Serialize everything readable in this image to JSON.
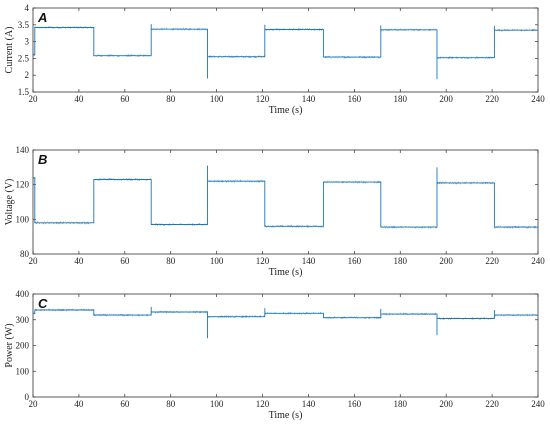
{
  "chart_data": [
    {
      "type": "line",
      "panel_label": "A",
      "xlabel": "Time (s)",
      "ylabel": "Current (A)",
      "xlim": [
        20,
        240
      ],
      "ylim": [
        1.5,
        4
      ],
      "xticks": [
        20,
        40,
        60,
        80,
        100,
        120,
        140,
        160,
        180,
        200,
        220,
        240
      ],
      "yticks": [
        1.5,
        2,
        2.5,
        3,
        3.5,
        4
      ],
      "grid": false,
      "color": "#1f77b4",
      "noise": 0.04,
      "series": [
        {
          "x": [
            20,
            20.8,
            20.8,
            46.5,
            46.5,
            71.5,
            71.5,
            96,
            96,
            121,
            121,
            146.5,
            146.5,
            171.5,
            171.5,
            196,
            196,
            221,
            221,
            240
          ],
          "y": [
            2.6,
            2.6,
            3.42,
            3.42,
            2.58,
            2.58,
            3.37,
            3.37,
            2.55,
            2.55,
            3.36,
            3.36,
            2.54,
            2.54,
            3.35,
            3.35,
            2.52,
            2.52,
            3.34,
            3.34
          ]
        }
      ],
      "spikes": [
        {
          "x": 71.5,
          "y": 3.52
        },
        {
          "x": 96,
          "y": 1.9
        },
        {
          "x": 121,
          "y": 3.5
        },
        {
          "x": 171.5,
          "y": 3.48
        },
        {
          "x": 196,
          "y": 1.88
        },
        {
          "x": 221,
          "y": 3.47
        }
      ]
    },
    {
      "type": "line",
      "panel_label": "B",
      "xlabel": "Time (s)",
      "ylabel": "Voltage (V)",
      "xlim": [
        20,
        240
      ],
      "ylim": [
        80,
        140
      ],
      "xticks": [
        20,
        40,
        60,
        80,
        100,
        120,
        140,
        160,
        180,
        200,
        220,
        240
      ],
      "yticks": [
        80,
        100,
        120,
        140
      ],
      "grid": false,
      "color": "#1f77b4",
      "noise": 0.8,
      "series": [
        {
          "x": [
            20,
            20.8,
            20.8,
            46.5,
            46.5,
            71.5,
            71.5,
            96,
            96,
            121,
            121,
            146.5,
            146.5,
            171.5,
            171.5,
            196,
            196,
            221,
            221,
            240
          ],
          "y": [
            124,
            124,
            98,
            98,
            123,
            123,
            97,
            97,
            122,
            122,
            96,
            96,
            121.5,
            121.5,
            95.5,
            95.5,
            121,
            121,
            95.5,
            95.5
          ]
        }
      ],
      "spikes": [
        {
          "x": 96,
          "y": 131
        },
        {
          "x": 196,
          "y": 130
        }
      ]
    },
    {
      "type": "line",
      "panel_label": "C",
      "xlabel": "Time (s)",
      "ylabel": "Power (W)",
      "xlim": [
        20,
        240
      ],
      "ylim": [
        0,
        400
      ],
      "xticks": [
        20,
        40,
        60,
        80,
        100,
        120,
        140,
        160,
        180,
        200,
        220,
        240
      ],
      "yticks": [
        0,
        100,
        200,
        300,
        400
      ],
      "grid": false,
      "color": "#1f77b4",
      "noise": 5,
      "series": [
        {
          "x": [
            20,
            20.8,
            20.8,
            46.5,
            46.5,
            71.5,
            71.5,
            96,
            96,
            121,
            121,
            146.5,
            146.5,
            171.5,
            171.5,
            196,
            196,
            221,
            221,
            240
          ],
          "y": [
            325,
            325,
            338,
            338,
            318,
            318,
            330,
            330,
            312,
            312,
            325,
            325,
            308,
            308,
            322,
            322,
            305,
            305,
            318,
            318
          ]
        }
      ],
      "spikes": [
        {
          "x": 71.5,
          "y": 350
        },
        {
          "x": 96,
          "y": 228
        },
        {
          "x": 121,
          "y": 345
        },
        {
          "x": 171.5,
          "y": 342
        },
        {
          "x": 196,
          "y": 240
        },
        {
          "x": 221,
          "y": 338
        }
      ]
    }
  ]
}
